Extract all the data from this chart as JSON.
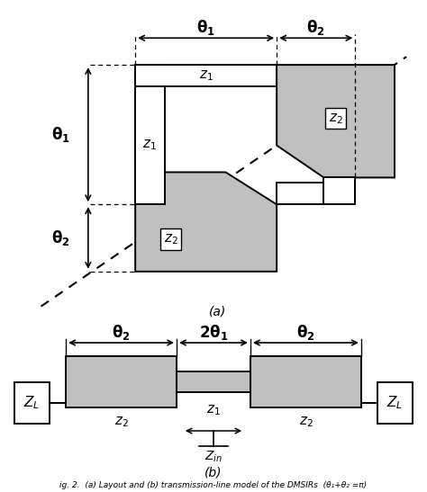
{
  "fig_width": 4.74,
  "fig_height": 5.47,
  "dpi": 100,
  "gray_color": "#c0c0c0",
  "white": "#ffffff",
  "black": "#000000",
  "caption": "ig. 2.  (a) Layout and (b) transmission-line model of the DMSIRs  (θ₁+θ₂ =π)",
  "label_a": "(a)",
  "label_b": "(b)"
}
